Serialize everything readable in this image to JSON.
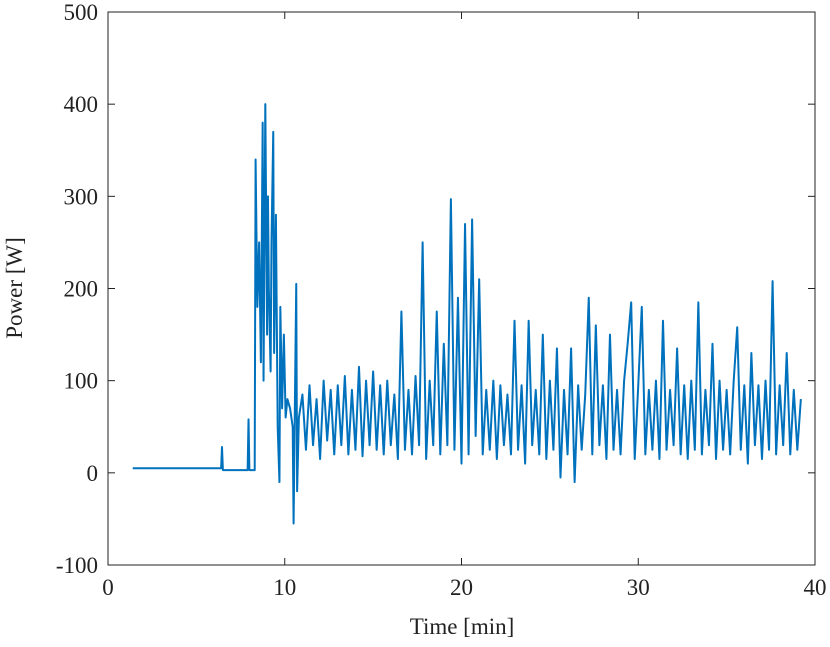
{
  "chart_data": {
    "type": "line",
    "xlabel": "Time [min]",
    "ylabel": "Power [W]",
    "color": "#0072bd",
    "xlim": [
      0,
      40
    ],
    "xticks": [
      0,
      10,
      20,
      30,
      40
    ],
    "ylim": [
      -100,
      500
    ],
    "yticks": [
      -100,
      0,
      100,
      200,
      300,
      400,
      500
    ],
    "x": [
      1.4,
      3,
      5,
      6.4,
      6.45,
      6.5,
      7.9,
      7.95,
      8.0,
      8.3,
      8.35,
      8.45,
      8.55,
      8.65,
      8.75,
      8.8,
      8.9,
      9.0,
      9.05,
      9.1,
      9.2,
      9.25,
      9.35,
      9.4,
      9.5,
      9.6,
      9.7,
      9.75,
      9.85,
      9.95,
      10.05,
      10.15,
      10.3,
      10.45,
      10.5,
      10.6,
      10.65,
      10.7,
      10.8,
      11.0,
      11.2,
      11.4,
      11.6,
      11.8,
      12.0,
      12.2,
      12.4,
      12.6,
      12.8,
      13.0,
      13.2,
      13.4,
      13.6,
      13.8,
      14.0,
      14.2,
      14.4,
      14.6,
      14.8,
      15.0,
      15.2,
      15.4,
      15.6,
      15.8,
      16.0,
      16.2,
      16.4,
      16.6,
      16.8,
      17.0,
      17.2,
      17.4,
      17.6,
      17.8,
      18.0,
      18.2,
      18.4,
      18.6,
      18.8,
      19.0,
      19.2,
      19.4,
      19.6,
      19.8,
      20.0,
      20.2,
      20.4,
      20.6,
      20.8,
      21.0,
      21.2,
      21.4,
      21.6,
      21.8,
      22.0,
      22.2,
      22.4,
      22.6,
      22.8,
      23.0,
      23.2,
      23.4,
      23.6,
      23.8,
      24.0,
      24.2,
      24.4,
      24.6,
      24.8,
      25.0,
      25.2,
      25.4,
      25.6,
      25.8,
      26.0,
      26.2,
      26.4,
      26.6,
      26.8,
      27.0,
      27.2,
      27.4,
      27.6,
      27.8,
      28.0,
      28.2,
      28.4,
      28.6,
      28.8,
      29.0,
      29.2,
      29.4,
      29.6,
      29.8,
      30.0,
      30.2,
      30.4,
      30.6,
      30.8,
      31.0,
      31.2,
      31.4,
      31.6,
      31.8,
      32.0,
      32.2,
      32.4,
      32.6,
      32.8,
      33.0,
      33.2,
      33.4,
      33.6,
      33.8,
      34.0,
      34.2,
      34.4,
      34.6,
      34.8,
      35.0,
      35.2,
      35.4,
      35.6,
      35.8,
      36.0,
      36.2,
      36.4,
      36.6,
      36.8,
      37.0,
      37.2,
      37.4,
      37.6,
      37.8,
      38.0,
      38.2,
      38.4,
      38.6,
      38.8,
      39.0,
      39.2
    ],
    "values": [
      5,
      5,
      5,
      5,
      28,
      3,
      3,
      58,
      3,
      3,
      340,
      180,
      250,
      120,
      380,
      100,
      400,
      150,
      300,
      200,
      110,
      250,
      370,
      130,
      280,
      50,
      -10,
      180,
      70,
      150,
      60,
      80,
      70,
      50,
      -55,
      120,
      205,
      -20,
      60,
      85,
      25,
      95,
      30,
      80,
      15,
      100,
      35,
      90,
      20,
      95,
      30,
      105,
      20,
      90,
      25,
      115,
      18,
      100,
      30,
      110,
      25,
      95,
      20,
      100,
      30,
      85,
      15,
      175,
      25,
      90,
      20,
      105,
      30,
      250,
      15,
      100,
      30,
      175,
      20,
      140,
      30,
      297,
      25,
      190,
      10,
      270,
      20,
      275,
      40,
      210,
      20,
      90,
      25,
      100,
      15,
      95,
      30,
      85,
      20,
      165,
      25,
      95,
      10,
      165,
      30,
      90,
      20,
      150,
      15,
      100,
      25,
      135,
      -5,
      90,
      20,
      135,
      -10,
      95,
      25,
      85,
      190,
      20,
      160,
      30,
      95,
      15,
      150,
      25,
      90,
      20,
      100,
      140,
      185,
      15,
      95,
      180,
      20,
      90,
      25,
      100,
      15,
      165,
      25,
      90,
      30,
      135,
      20,
      95,
      15,
      100,
      25,
      185,
      20,
      90,
      30,
      140,
      15,
      100,
      25,
      90,
      20,
      100,
      158,
      25,
      95,
      10,
      130,
      30,
      95,
      15,
      100,
      25,
      208,
      20,
      95,
      30,
      130,
      20,
      90,
      25,
      80
    ]
  }
}
